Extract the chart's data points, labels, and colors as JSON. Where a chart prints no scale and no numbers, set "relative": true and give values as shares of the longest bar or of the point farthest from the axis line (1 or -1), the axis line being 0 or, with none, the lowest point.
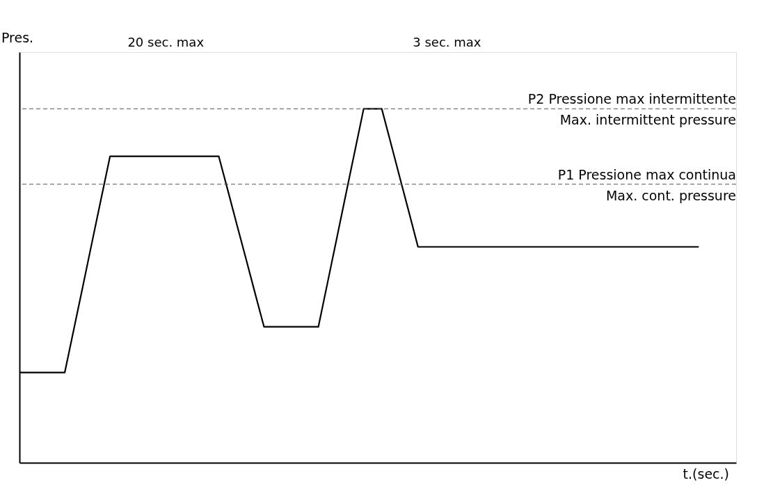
{
  "chart_data": {
    "type": "line",
    "relative": true,
    "xlabel": "t.(sec.)",
    "ylabel": "Pres.",
    "categories": [
      null,
      null,
      null,
      null,
      null,
      null,
      null,
      null,
      null,
      null,
      null,
      null,
      null,
      null,
      null,
      null,
      null,
      null,
      null,
      null,
      null,
      null,
      null,
      null,
      null,
      null,
      null,
      null,
      null,
      null,
      null,
      null,
      null,
      null,
      null,
      null,
      null,
      null,
      null,
      null,
      null,
      null,
      null,
      null,
      null,
      null,
      null,
      null,
      null,
      null,
      null,
      null,
      null,
      null,
      null,
      null,
      null,
      null,
      null,
      null,
      null,
      null,
      null,
      null,
      null,
      null,
      null,
      null,
      null,
      null,
      null,
      null,
      null,
      null,
      null,
      null
    ],
    "tick_labels": false,
    "grid": false,
    "marker": "none",
    "line_style": "solid",
    "series": [
      {
        "color": "#000000",
        "values": [
          0.255,
          0.255,
          0.255,
          0.255,
          0.255,
          0.255,
          0.377,
          0.499,
          0.622,
          0.744,
          0.866,
          0.866,
          0.866,
          0.866,
          0.866,
          0.866,
          0.866,
          0.866,
          0.866,
          0.866,
          0.866,
          0.866,
          0.866,
          0.77,
          0.673,
          0.577,
          0.48,
          0.384,
          0.384,
          0.384,
          0.384,
          0.384,
          0.384,
          0.384,
          0.507,
          0.63,
          0.754,
          0.877,
          1.0,
          1.0,
          1.0,
          0.903,
          0.805,
          0.708,
          0.61,
          0.61,
          0.61,
          0.61,
          0.61,
          0.61,
          0.61,
          0.61,
          0.61,
          0.61,
          0.61,
          0.61,
          0.61,
          0.61,
          0.61,
          0.61,
          0.61,
          0.61,
          0.61,
          0.61,
          0.61,
          0.61,
          0.61,
          0.61,
          0.61,
          0.61,
          0.61,
          0.61,
          0.61,
          0.61,
          0.61,
          0.61
        ]
      }
    ],
    "ref_lines": [
      {
        "axis": "y",
        "value": 1.0,
        "label": "P2 Pressione max intermittente\nMax. intermittent pressure",
        "color": "#555555",
        "line_style": "dashed"
      },
      {
        "axis": "y",
        "value": 0.787,
        "label": "P1 Pressione max continua\nMax. cont. pressure",
        "color": "#555555",
        "line_style": "dashed"
      }
    ],
    "annotations": [
      "20 sec. max",
      "3 sec. max"
    ]
  }
}
